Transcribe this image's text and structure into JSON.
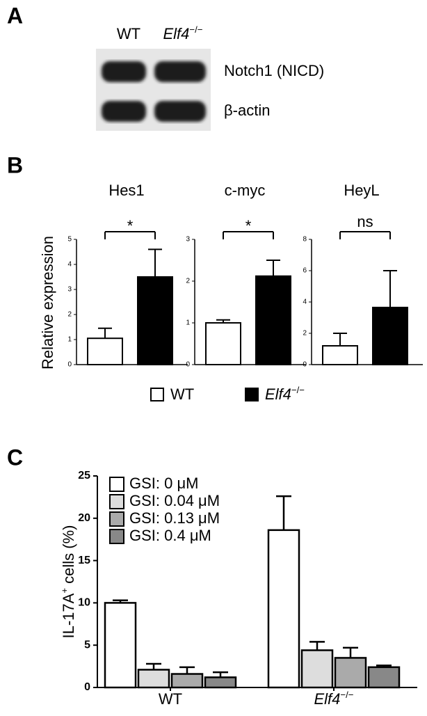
{
  "blot": {
    "panel_label": "A",
    "lanes": [
      "WT",
      {
        "text": "Elf4",
        "sup": "−/−",
        "style": "italic"
      }
    ],
    "bands": [
      "Notch1 (NICD)",
      "β-actin"
    ]
  },
  "chart_data": [
    {
      "type": "bar-panels",
      "panel_label": "B",
      "ylabel": "Relative expression",
      "legend": [
        {
          "name": "WT",
          "color": "#ffffff"
        },
        {
          "name": {
            "text": "Elf4",
            "sup": "−/−",
            "style": "italic"
          },
          "color": "#000000"
        }
      ],
      "subplots": [
        {
          "title": "Hes1",
          "ylim": [
            0,
            5
          ],
          "yticks": [
            0,
            1,
            2,
            3,
            4,
            5
          ],
          "values": [
            1.05,
            3.5
          ],
          "errors": [
            0.4,
            1.1
          ],
          "annotation": "*"
        },
        {
          "title": "c-myc",
          "ylim": [
            0,
            3
          ],
          "yticks": [
            0,
            1,
            2,
            3
          ],
          "values": [
            1.0,
            2.12
          ],
          "errors": [
            0.07,
            0.38
          ],
          "annotation": "*"
        },
        {
          "title": "HeyL",
          "ylim": [
            0,
            8
          ],
          "yticks": [
            0,
            2,
            4,
            6,
            8
          ],
          "values": [
            1.2,
            3.65
          ],
          "errors": [
            0.8,
            2.35
          ],
          "annotation": "ns"
        }
      ]
    },
    {
      "type": "bar",
      "panel_label": "C",
      "ylabel": {
        "text": "IL-17A",
        "sup": "+",
        "post": " cells (%)"
      },
      "categories": [
        "WT",
        {
          "text": "Elf4",
          "sup": "−/−",
          "style": "italic"
        }
      ],
      "ylim": [
        0,
        25
      ],
      "yticks": [
        0,
        5,
        10,
        15,
        20,
        25
      ],
      "series": [
        {
          "name": "GSI: 0 μM",
          "color": "#ffffff",
          "values": [
            10.0,
            18.6
          ],
          "errors": [
            0.3,
            4.0
          ]
        },
        {
          "name": "GSI: 0.04 μM",
          "color": "#dddddd",
          "values": [
            2.1,
            4.4
          ],
          "errors": [
            0.7,
            1.0
          ]
        },
        {
          "name": "GSI: 0.13 μM",
          "color": "#aaaaaa",
          "values": [
            1.6,
            3.5
          ],
          "errors": [
            0.8,
            1.2
          ]
        },
        {
          "name": "GSI: 0.4 μM",
          "color": "#888888",
          "values": [
            1.2,
            2.4
          ],
          "errors": [
            0.6,
            0.2
          ]
        }
      ]
    }
  ]
}
